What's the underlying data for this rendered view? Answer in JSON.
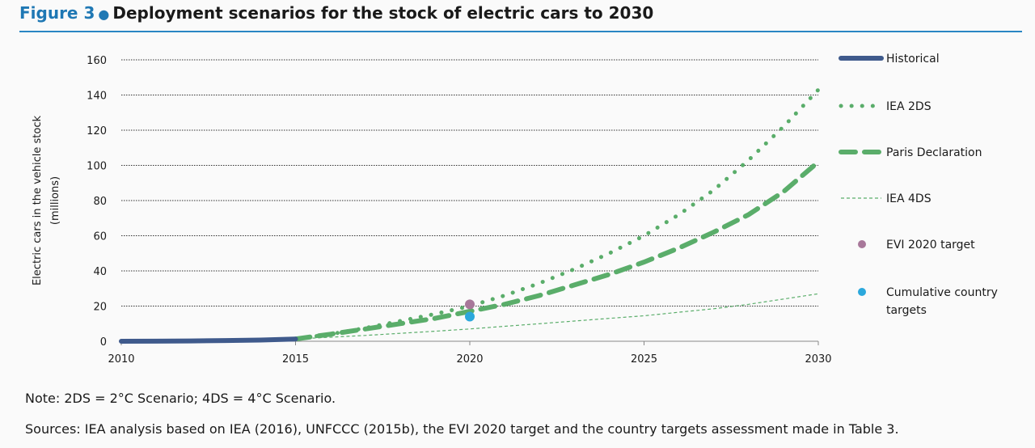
{
  "figure": {
    "number": "Figure 3",
    "title": "Deployment scenarios for the stock of electric cars to 2030",
    "note": "Note: 2DS = 2°C Scenario; 4DS = 4°C Scenario.",
    "sources": "Sources: IEA analysis based on IEA (2016), UNFCCC (2015b), the EVI 2020 target and the country targets assessment made in Table 3."
  },
  "colors": {
    "accent": "#1f78b4",
    "historical": "#3f5a8c",
    "green": "#5aad6a",
    "evi": "#a8789a",
    "cumulative": "#2ba8dc"
  },
  "chart_data": {
    "type": "line",
    "ylabel": [
      "Electric cars in the vehicle stock",
      "(millions)"
    ],
    "xlim": [
      2010,
      2030
    ],
    "ylim": [
      0,
      160
    ],
    "x_ticks": [
      "2010",
      "2015",
      "2020",
      "2025",
      "2030"
    ],
    "y_ticks": [
      "0",
      "20",
      "40",
      "60",
      "80",
      "100",
      "120",
      "140",
      "160"
    ],
    "grid": true,
    "legend_position": "right",
    "series": [
      {
        "name": "Historical",
        "style": "solid",
        "x": [
          2010,
          2011,
          2012,
          2013,
          2014,
          2015
        ],
        "y": [
          0.0,
          0.05,
          0.2,
          0.4,
          0.7,
          1.3
        ]
      },
      {
        "name": "IEA 2DS",
        "style": "dotted",
        "x": [
          2015,
          2016,
          2017,
          2018,
          2019,
          2020,
          2021,
          2022,
          2023,
          2024,
          2025,
          2026,
          2027,
          2028,
          2029,
          2030
        ],
        "y": [
          1.3,
          4,
          7.5,
          11.5,
          15.5,
          20,
          26,
          33,
          41,
          50,
          60,
          72,
          86,
          103,
          122,
          143
        ]
      },
      {
        "name": "Paris Declaration",
        "style": "dashed",
        "x": [
          2015,
          2016,
          2017,
          2018,
          2019,
          2020,
          2021,
          2022,
          2023,
          2024,
          2025,
          2026,
          2027,
          2028,
          2029,
          2030
        ],
        "y": [
          1.3,
          4,
          7,
          10,
          13,
          17,
          21,
          26,
          32,
          38,
          45,
          53,
          62,
          72,
          85,
          102
        ]
      },
      {
        "name": "IEA 4DS",
        "style": "thin-dashed",
        "x": [
          2015,
          2016,
          2017,
          2018,
          2019,
          2020,
          2021,
          2022,
          2023,
          2024,
          2025,
          2026,
          2027,
          2028,
          2029,
          2030
        ],
        "y": [
          1.3,
          2.3,
          3.3,
          4.5,
          5.7,
          7,
          8.5,
          10,
          11.5,
          13,
          14.5,
          16.5,
          18.5,
          21,
          24,
          27
        ]
      }
    ],
    "points": [
      {
        "name": "EVI 2020 target",
        "x": 2020,
        "y": 21
      },
      {
        "name": "Cumulative country targets",
        "x": 2020,
        "y": 14
      }
    ],
    "legend": [
      {
        "label": "Historical",
        "key": "historical"
      },
      {
        "label": "IEA 2DS",
        "key": "2ds"
      },
      {
        "label": "Paris Declaration",
        "key": "paris"
      },
      {
        "label": "IEA 4DS",
        "key": "4ds"
      },
      {
        "label": "EVI 2020 target",
        "key": "evi"
      },
      {
        "label": [
          "Cumulative country",
          "targets"
        ],
        "key": "cumulative"
      }
    ]
  }
}
